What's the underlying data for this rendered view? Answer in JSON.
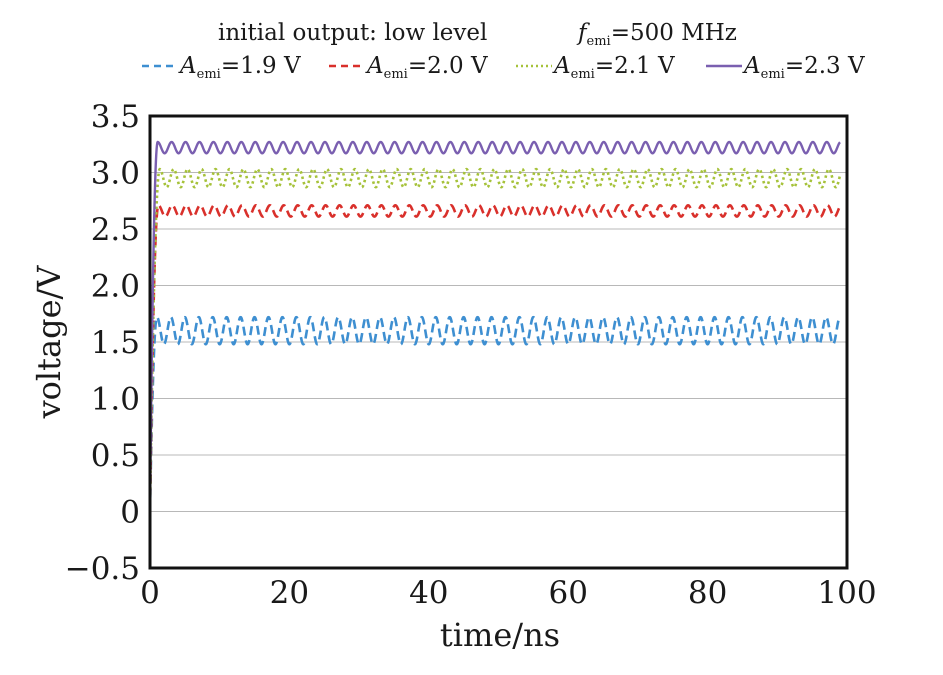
{
  "header": {
    "condition": "initial output: low level",
    "freq_symbol": "f",
    "freq_sub": "emi",
    "freq_value": "=500 MHz"
  },
  "chart_data": {
    "type": "line",
    "title": "",
    "xlabel": "time/ns",
    "ylabel": "voltage/V",
    "xlim": [
      0,
      100
    ],
    "ylim": [
      -0.5,
      3.5
    ],
    "xticks": [
      "0",
      "20",
      "40",
      "60",
      "80",
      "100"
    ],
    "yticks": [
      "−0.5",
      "0",
      "0.5",
      "1.0",
      "1.5",
      "2.0",
      "2.5",
      "3.0",
      "3.5"
    ],
    "ytick_values": [
      -0.5,
      0,
      0.5,
      1.0,
      1.5,
      2.0,
      2.5,
      3.0,
      3.5
    ],
    "xtick_values": [
      0,
      20,
      40,
      60,
      80,
      100
    ],
    "grid": "horizontal",
    "legend_position": "top",
    "oscillation_period_ns": 2,
    "series": [
      {
        "label_symbol": "A",
        "label_sub": "emi",
        "label_value": "=1.9 V",
        "color": "#3e8fd1",
        "dash": "dashed",
        "start": 0.0,
        "rise_time_ns": 1.0,
        "center": 1.6,
        "amplitude": 0.12,
        "x_end": 99
      },
      {
        "label_symbol": "A",
        "label_sub": "emi",
        "label_value": "=2.0 V",
        "color": "#d9302b",
        "dash": "dashed",
        "start": 0.0,
        "rise_time_ns": 1.2,
        "center": 2.66,
        "amplitude": 0.05,
        "x_end": 99
      },
      {
        "label_symbol": "A",
        "label_sub": "emi",
        "label_value": "=2.1 V",
        "color": "#a6c23a",
        "dash": "dotted",
        "start": 0.0,
        "rise_time_ns": 1.4,
        "center": 2.95,
        "amplitude": 0.08,
        "x_end": 99
      },
      {
        "label_symbol": "A",
        "label_sub": "emi",
        "label_value": "=2.3 V",
        "color": "#7a5fb0",
        "dash": "solid",
        "start": 0.0,
        "rise_time_ns": 1.1,
        "center": 3.22,
        "amplitude": 0.05,
        "x_end": 99
      }
    ]
  }
}
